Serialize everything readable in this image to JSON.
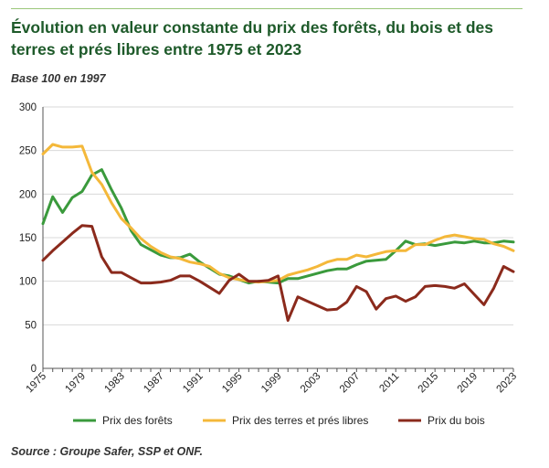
{
  "header": {
    "title": "Évolution en valeur constante du prix des forêts, du bois et des terres et prés libres entre 1975 et 2023",
    "subtitle": "Base 100 en 1997"
  },
  "footer": {
    "source": "Source : Groupe Safer, SSP et ONF."
  },
  "chart_data": {
    "type": "line",
    "title": "Évolution en valeur constante du prix des forêts, du bois et des terres et prés libres entre 1975 et 2023",
    "subtitle": "Base 100 en 1997",
    "xlabel": "",
    "ylabel": "",
    "xlim": [
      1975,
      2023
    ],
    "ylim": [
      0,
      300
    ],
    "yticks": [
      0,
      50,
      100,
      150,
      200,
      250,
      300
    ],
    "xticks": [
      "1975",
      "1979",
      "1983",
      "1987",
      "1991",
      "1995",
      "1999",
      "2003",
      "2007",
      "2011",
      "2015",
      "2019",
      "2023"
    ],
    "grid": "horizontal",
    "legend": "bottom",
    "x": [
      1975,
      1976,
      1977,
      1978,
      1979,
      1980,
      1981,
      1982,
      1983,
      1984,
      1985,
      1986,
      1987,
      1988,
      1989,
      1990,
      1991,
      1992,
      1993,
      1994,
      1995,
      1996,
      1997,
      1998,
      1999,
      2000,
      2001,
      2002,
      2003,
      2004,
      2005,
      2006,
      2007,
      2008,
      2009,
      2010,
      2011,
      2012,
      2013,
      2014,
      2015,
      2016,
      2017,
      2018,
      2019,
      2020,
      2021,
      2022,
      2023
    ],
    "series": [
      {
        "name": "Prix des forêts",
        "color": "#3a9a3c",
        "values": [
          166,
          197,
          179,
          196,
          203,
          222,
          228,
          205,
          184,
          158,
          142,
          136,
          130,
          127,
          127,
          131,
          122,
          115,
          108,
          106,
          102,
          98,
          100,
          99,
          98,
          103,
          103,
          106,
          109,
          112,
          114,
          114,
          119,
          123,
          124,
          125,
          135,
          146,
          142,
          143,
          141,
          143,
          145,
          144,
          146,
          144,
          144,
          146,
          145
        ]
      },
      {
        "name": "Prix des terres et prés libres",
        "color": "#f4b83a",
        "values": [
          246,
          257,
          254,
          254,
          255,
          225,
          211,
          190,
          172,
          161,
          149,
          140,
          133,
          128,
          126,
          122,
          120,
          117,
          109,
          104,
          102,
          100,
          99,
          100,
          101,
          107,
          110,
          113,
          117,
          122,
          125,
          125,
          130,
          128,
          131,
          134,
          135,
          135,
          142,
          142,
          147,
          151,
          153,
          151,
          149,
          148,
          143,
          140,
          135
        ]
      },
      {
        "name": "Prix du bois",
        "color": "#8b2a1c",
        "values": [
          124,
          135,
          145,
          155,
          164,
          163,
          128,
          110,
          110,
          104,
          98,
          98,
          99,
          101,
          106,
          106,
          100,
          93,
          86,
          101,
          108,
          100,
          100,
          101,
          106,
          55,
          82,
          77,
          72,
          67,
          68,
          76,
          94,
          88,
          68,
          80,
          83,
          77,
          82,
          94,
          95,
          94,
          92,
          97,
          85,
          73,
          92,
          117,
          111
        ]
      }
    ]
  }
}
